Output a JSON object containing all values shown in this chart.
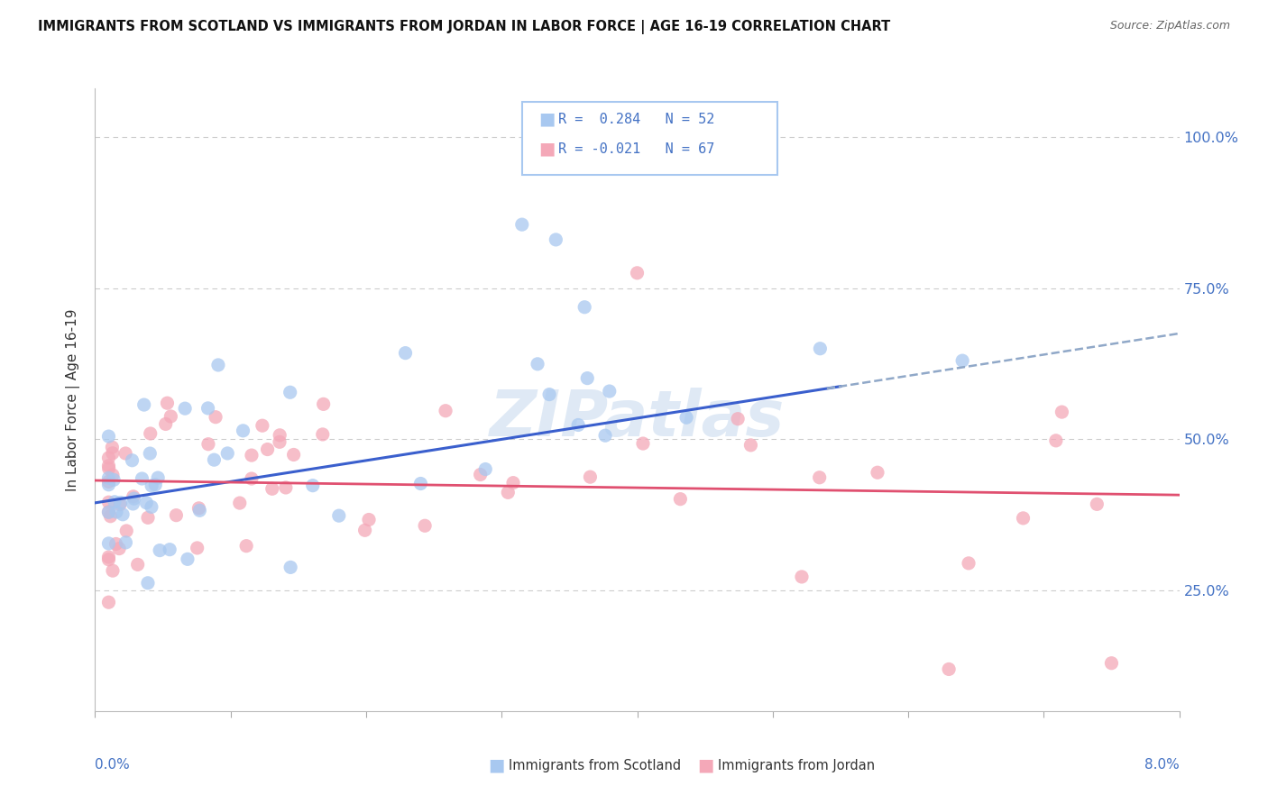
{
  "title": "IMMIGRANTS FROM SCOTLAND VS IMMIGRANTS FROM JORDAN IN LABOR FORCE | AGE 16-19 CORRELATION CHART",
  "source": "Source: ZipAtlas.com",
  "ylabel": "In Labor Force | Age 16-19",
  "x_min": 0.0,
  "x_max": 0.08,
  "y_min": 0.05,
  "y_max": 1.08,
  "scotland_color": "#a8c8f0",
  "jordan_color": "#f4a8b8",
  "scotland_R": 0.284,
  "scotland_N": 52,
  "jordan_R": -0.021,
  "jordan_N": 67,
  "watermark": "ZIPatlas",
  "trend_scotland_color": "#3a5fcd",
  "trend_jordan_color": "#e05070",
  "trend_dashed_color": "#90a8c8",
  "background_color": "#ffffff",
  "grid_color": "#cccccc",
  "legend_border_color": "#a8c8f0",
  "right_label_color": "#4472c4",
  "y_ticks": [
    0.25,
    0.5,
    0.75,
    1.0
  ],
  "y_tick_labels": [
    "25.0%",
    "50.0%",
    "75.0%",
    "100.0%"
  ]
}
